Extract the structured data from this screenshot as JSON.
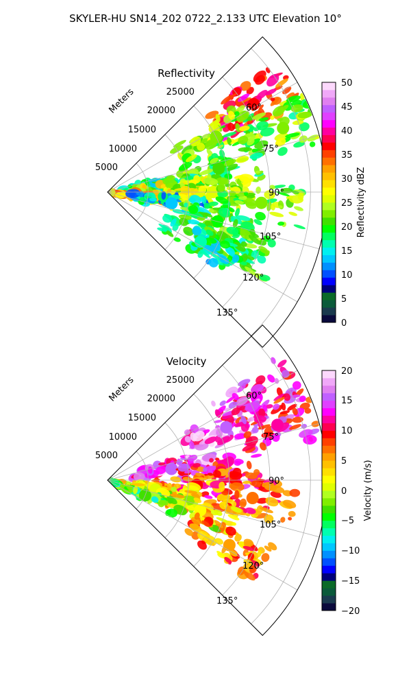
{
  "figure": {
    "suptitle": "SKYLER-HU  SN14_202  0722_2.133 UTC Elevation 10°"
  },
  "colors": {
    "background": "#ffffff",
    "grid": "#b0b0b0",
    "axes": "#000000",
    "ramp": [
      "#0a0a3c",
      "#1a3a4e",
      "#0a5a3a",
      "#0a6a28",
      "#00007a",
      "#0000ff",
      "#0050ff",
      "#0090ff",
      "#00c8ff",
      "#00f0f0",
      "#00ffb0",
      "#00ff60",
      "#00ff00",
      "#40e000",
      "#80ee00",
      "#b0ff20",
      "#e0ff00",
      "#ffff00",
      "#ffe000",
      "#ffc000",
      "#ffa000",
      "#ff7000",
      "#ff4000",
      "#ff0000",
      "#ff0050",
      "#ff00a0",
      "#ff00ff",
      "#e040ff",
      "#c060ff",
      "#e080f0",
      "#f0a8f8",
      "#fcd8fc"
    ]
  },
  "chart_data": [
    {
      "type": "heatmap",
      "projection": "polar sector",
      "title": "Reflectivity",
      "radial_label": "Meters",
      "radial_ticks": [
        "5000",
        "10000",
        "15000",
        "20000",
        "25000"
      ],
      "radial_range": [
        0,
        27000
      ],
      "azimuth_ticks": [
        "60°",
        "75°",
        "90°",
        "105°",
        "120°",
        "135°"
      ],
      "azimuth_range_deg": [
        45,
        135
      ],
      "colorbar": {
        "label": "Reflectivity dBZ",
        "min": 0,
        "max": 50,
        "ticks": [
          "0",
          "5",
          "10",
          "15",
          "20",
          "25",
          "30",
          "35",
          "40",
          "45",
          "50"
        ]
      },
      "echo_cells": [
        {
          "az": 59,
          "r": 21000,
          "value": 37
        },
        {
          "az": 63,
          "r": 15000,
          "value": 22
        },
        {
          "az": 70,
          "r": 23000,
          "value": 22
        },
        {
          "az": 78,
          "r": 14000,
          "value": 21
        },
        {
          "az": 82,
          "r": 7000,
          "value": 18
        },
        {
          "az": 88,
          "r": 9000,
          "value": 26
        },
        {
          "az": 90,
          "r": 13000,
          "value": 25
        },
        {
          "az": 94,
          "r": 19000,
          "value": 22
        },
        {
          "az": 96,
          "r": 3000,
          "value": 30
        },
        {
          "az": 100,
          "r": 8000,
          "value": 14
        },
        {
          "az": 105,
          "r": 14000,
          "value": 20
        },
        {
          "az": 113,
          "r": 17000,
          "value": 20
        },
        {
          "az": 118,
          "r": 13000,
          "value": 17
        }
      ]
    },
    {
      "type": "heatmap",
      "projection": "polar sector",
      "title": "Velocity",
      "radial_label": "Meters",
      "radial_ticks": [
        "5000",
        "10000",
        "15000",
        "20000",
        "25000"
      ],
      "radial_range": [
        0,
        27000
      ],
      "azimuth_ticks": [
        "60°",
        "75°",
        "90°",
        "105°",
        "120°",
        "135°"
      ],
      "azimuth_range_deg": [
        45,
        135
      ],
      "colorbar": {
        "label": "Velocity (m/s)",
        "min": -20,
        "max": 20,
        "ticks": [
          "−20",
          "−15",
          "−10",
          "−5",
          "0",
          "5",
          "10",
          "15",
          "20"
        ]
      },
      "echo_cells": [
        {
          "az": 61,
          "r": 21000,
          "value": 13
        },
        {
          "az": 66,
          "r": 16000,
          "value": 15
        },
        {
          "az": 72,
          "r": 22000,
          "value": 12
        },
        {
          "az": 80,
          "r": 8000,
          "value": 15
        },
        {
          "az": 86,
          "r": 14000,
          "value": 11
        },
        {
          "az": 93,
          "r": 11000,
          "value": 9
        },
        {
          "az": 97,
          "r": 18000,
          "value": 7
        },
        {
          "az": 101,
          "r": 6000,
          "value": 1
        },
        {
          "az": 108,
          "r": 12000,
          "value": 2
        },
        {
          "az": 112,
          "r": 5000,
          "value": -3
        },
        {
          "az": 118,
          "r": 17000,
          "value": 6
        }
      ]
    }
  ]
}
